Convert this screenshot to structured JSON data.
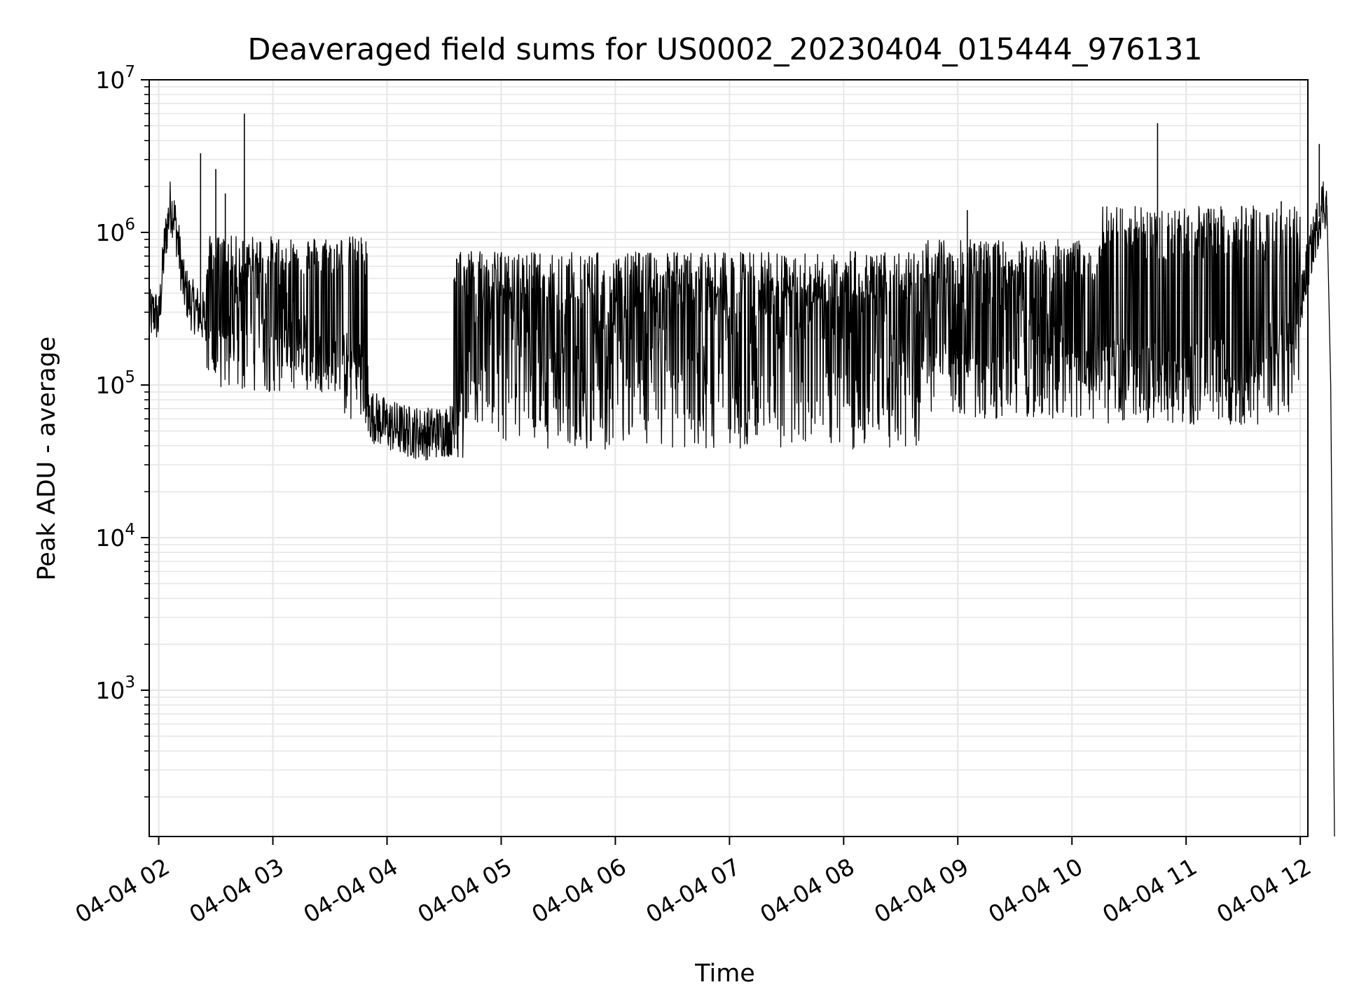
{
  "chart_data": {
    "type": "line",
    "title": "Deaveraged field sums for US0002_20230404_015444_976131",
    "xlabel": "Time",
    "ylabel": "Peak ADU - average",
    "yscale": "log",
    "ylim": [
      110,
      10000000
    ],
    "xlim": [
      "2023-04-04 01:55",
      "2023-04-04 12:04"
    ],
    "grid": true,
    "line_color": "#000000",
    "grid_color": "#e6e6e6",
    "x_ticks": [
      {
        "value": "2023-04-04 02:00",
        "label": "04-04 02"
      },
      {
        "value": "2023-04-04 03:00",
        "label": "04-04 03"
      },
      {
        "value": "2023-04-04 04:00",
        "label": "04-04 04"
      },
      {
        "value": "2023-04-04 05:00",
        "label": "04-04 05"
      },
      {
        "value": "2023-04-04 06:00",
        "label": "04-04 06"
      },
      {
        "value": "2023-04-04 07:00",
        "label": "04-04 07"
      },
      {
        "value": "2023-04-04 08:00",
        "label": "04-04 08"
      },
      {
        "value": "2023-04-04 09:00",
        "label": "04-04 09"
      },
      {
        "value": "2023-04-04 10:00",
        "label": "04-04 10"
      },
      {
        "value": "2023-04-04 11:00",
        "label": "04-04 11"
      },
      {
        "value": "2023-04-04 12:00",
        "label": "04-04 12"
      }
    ],
    "y_ticks": [
      {
        "value": 1000,
        "base": "10",
        "exp": "3"
      },
      {
        "value": 10000,
        "base": "10",
        "exp": "4"
      },
      {
        "value": 100000,
        "base": "10",
        "exp": "5"
      },
      {
        "value": 1000000,
        "base": "10",
        "exp": "6"
      },
      {
        "value": 10000000,
        "base": "10",
        "exp": "7"
      }
    ],
    "series": [
      {
        "points": [
          [
            "2023-04-04 01:55",
            280000
          ],
          [
            "2023-04-04 01:58",
            300000
          ],
          [
            "2023-04-04 02:00",
            260000
          ],
          [
            "2023-04-04 02:03",
            800000
          ],
          [
            "2023-04-04 02:06",
            1500000
          ],
          [
            "2023-04-04 02:08",
            1300000
          ],
          [
            "2023-04-04 02:10",
            900000
          ],
          [
            "2023-04-04 02:13",
            450000
          ],
          [
            "2023-04-04 02:17",
            340000
          ],
          [
            "2023-04-04 02:21",
            300000
          ],
          [
            "2023-04-04 02:25",
            260000
          ],
          [
            "2023-04-04 02:29",
            240000
          ],
          [
            "2023-04-04 02:33",
            250000
          ],
          [
            "2023-04-04 02:37",
            300000
          ],
          [
            "2023-04-04 02:41",
            360000
          ],
          [
            "2023-04-04 02:45",
            450000
          ],
          [
            "2023-04-04 02:50",
            400000
          ],
          [
            "2023-04-04 02:55",
            340000
          ],
          [
            "2023-04-04 03:00",
            280000
          ],
          [
            "2023-04-04 03:10",
            220000
          ],
          [
            "2023-04-04 03:20",
            180000
          ],
          [
            "2023-04-04 03:30",
            150000
          ],
          [
            "2023-04-04 03:40",
            100000
          ],
          [
            "2023-04-04 03:50",
            65000
          ],
          [
            "2023-04-04 04:00",
            55000
          ],
          [
            "2023-04-04 04:10",
            50000
          ],
          [
            "2023-04-04 04:20",
            48000
          ],
          [
            "2023-04-04 04:30",
            50000
          ],
          [
            "2023-04-04 04:40",
            52000
          ],
          [
            "2023-04-04 04:45",
            200000
          ],
          [
            "2023-04-04 05:00",
            220000
          ],
          [
            "2023-04-04 05:30",
            210000
          ],
          [
            "2023-04-04 06:00",
            230000
          ],
          [
            "2023-04-04 06:30",
            240000
          ],
          [
            "2023-04-04 07:00",
            260000
          ],
          [
            "2023-04-04 07:30",
            300000
          ],
          [
            "2023-04-04 08:00",
            280000
          ],
          [
            "2023-04-04 08:30",
            230000
          ],
          [
            "2023-04-04 09:00",
            200000
          ],
          [
            "2023-04-04 09:20",
            250000
          ],
          [
            "2023-04-04 09:40",
            280000
          ],
          [
            "2023-04-04 10:00",
            200000
          ],
          [
            "2023-04-04 10:20",
            120000
          ],
          [
            "2023-04-04 10:40",
            110000
          ],
          [
            "2023-04-04 11:00",
            95000
          ],
          [
            "2023-04-04 11:20",
            110000
          ],
          [
            "2023-04-04 11:40",
            150000
          ],
          [
            "2023-04-04 12:00",
            300000
          ],
          [
            "2023-04-04 12:03",
            550000
          ],
          [
            "2023-04-04 12:08",
            1000000
          ],
          [
            "2023-04-04 12:12",
            1600000
          ],
          [
            "2023-04-04 12:14",
            1500000
          ],
          [
            "2023-04-04 12:16",
            100000
          ],
          [
            "2023-04-04 12:18",
            110
          ]
        ],
        "noise_bands": [
          {
            "from": "2023-04-04 04:35",
            "to": "2023-04-04 08:40",
            "low": 38000,
            "high": 750000
          },
          {
            "from": "2023-04-04 02:25",
            "to": "2023-04-04 03:50",
            "low": 90000,
            "high": 950000
          },
          {
            "from": "2023-04-04 08:40",
            "to": "2023-04-04 10:15",
            "low": 60000,
            "high": 900000
          },
          {
            "from": "2023-04-04 10:15",
            "to": "2023-04-04 12:00",
            "low": 55000,
            "high": 1500000
          }
        ],
        "spikes": [
          [
            "2023-04-04 02:45",
            6000000
          ],
          [
            "2023-04-04 02:22",
            3300000
          ],
          [
            "2023-04-04 02:30",
            2600000
          ],
          [
            "2023-04-04 10:45",
            5200000
          ],
          [
            "2023-04-04 12:10",
            3800000
          ],
          [
            "2023-04-04 02:35",
            1800000
          ],
          [
            "2023-04-04 09:05",
            1400000
          ],
          [
            "2023-04-04 11:50",
            1600000
          ]
        ]
      }
    ]
  }
}
